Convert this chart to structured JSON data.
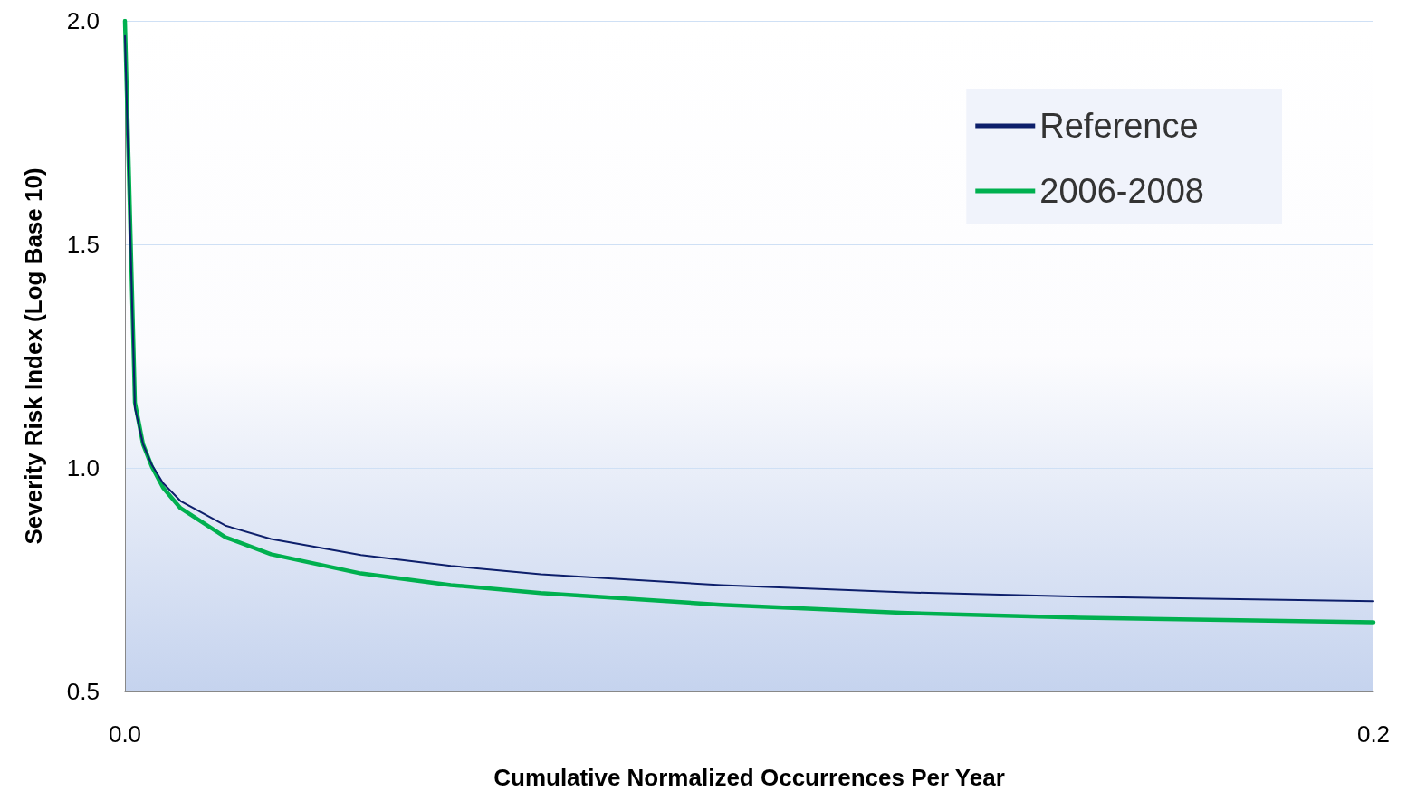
{
  "chart_data": {
    "type": "line",
    "xlabel": "Cumulative Normalized Occurrences Per Year",
    "ylabel": "Severity Risk Index (Log Base 10)",
    "xlim": [
      0,
      0.2
    ],
    "xticks": [
      {
        "value": 0,
        "label": "0.0"
      },
      0.2
    ],
    "ylim": [
      0.5,
      2.0
    ],
    "yticks": [
      0.5,
      {
        "value": 1,
        "label": "1.0"
      },
      1.5,
      {
        "value": 2,
        "label": "2.0"
      }
    ],
    "grid": "y",
    "legend": "top right",
    "marker": "none",
    "line_style": "solid",
    "series": [
      {
        "name": "Reference",
        "color": "#0d1f6b",
        "x": [
          0,
          0.0016,
          0.0029,
          0.0043,
          0.0061,
          0.0089,
          0.0161,
          0.0234,
          0.0378,
          0.0522,
          0.0666,
          0.0955,
          0.1243,
          0.1531,
          0.2
        ],
        "values": [
          1.966,
          1.134,
          1.053,
          1.007,
          0.966,
          0.926,
          0.871,
          0.841,
          0.805,
          0.781,
          0.762,
          0.738,
          0.722,
          0.712,
          0.702
        ]
      },
      {
        "name": "2006-2008",
        "color": "#00b04f",
        "x": [
          0,
          0.0016,
          0.0029,
          0.0043,
          0.0061,
          0.0089,
          0.0161,
          0.0234,
          0.0378,
          0.0522,
          0.0666,
          0.0955,
          0.1243,
          0.1531,
          0.2
        ],
        "values": [
          2.0,
          1.146,
          1.053,
          1.003,
          0.956,
          0.91,
          0.845,
          0.807,
          0.764,
          0.738,
          0.72,
          0.694,
          0.676,
          0.665,
          0.655
        ]
      }
    ]
  }
}
